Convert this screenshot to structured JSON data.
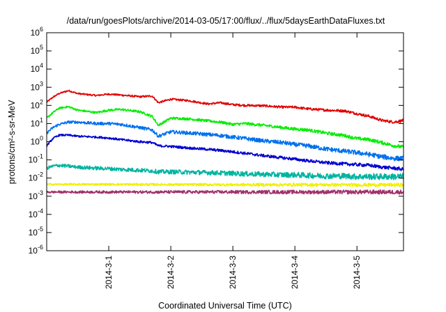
{
  "chart_data": {
    "type": "line",
    "title": "/data/run/goesPlots/archive/2014-03-05/17:00/flux/../flux/5daysEarthDataFluxes.txt",
    "xlabel": "Coordinated Universal Time (UTC)",
    "ylabel": "protons/cm²-s-sr-MeV",
    "yscale": "log",
    "ylim": [
      1e-06,
      1000000.0
    ],
    "y_tick_exponents": [
      -6,
      -5,
      -4,
      -3,
      -2,
      -1,
      0,
      1,
      2,
      3,
      4,
      5,
      6
    ],
    "x_range_days": [
      0,
      5.75
    ],
    "x_tick_labels": [
      "2014-3-1",
      "2014-3-2",
      "2014-3-3",
      "2014-3-4",
      "2014-3-5"
    ],
    "x_tick_days": [
      1,
      2,
      3,
      4,
      5
    ],
    "grid": false,
    "legend": "none",
    "series": [
      {
        "color": "#e00000",
        "noise": 0.04,
        "x": [
          0,
          0.1,
          0.2,
          0.35,
          0.5,
          0.8,
          1.0,
          1.2,
          1.5,
          1.7,
          1.8,
          2.0,
          2.3,
          2.6,
          2.8,
          3.0,
          3.2,
          3.5,
          3.8,
          4.0,
          4.2,
          4.5,
          4.8,
          5.0,
          5.2,
          5.4,
          5.6,
          5.75
        ],
        "y": [
          150,
          280,
          450,
          650,
          450,
          350,
          420,
          370,
          300,
          330,
          140,
          220,
          180,
          120,
          140,
          110,
          100,
          95,
          80,
          80,
          65,
          55,
          50,
          35,
          25,
          15,
          12,
          15
        ]
      },
      {
        "color": "#00ee00",
        "noise": 0.05,
        "x": [
          0,
          0.1,
          0.2,
          0.35,
          0.5,
          0.8,
          1.0,
          1.2,
          1.5,
          1.7,
          1.8,
          2.0,
          2.3,
          2.6,
          2.8,
          3.0,
          3.2,
          3.5,
          3.8,
          4.0,
          4.2,
          4.5,
          4.8,
          5.0,
          5.2,
          5.4,
          5.6,
          5.75
        ],
        "y": [
          20,
          40,
          70,
          85,
          55,
          40,
          55,
          60,
          45,
          25,
          8,
          20,
          18,
          14,
          12,
          9,
          10,
          8,
          6,
          5,
          4.5,
          3,
          2.2,
          1.5,
          1.3,
          0.9,
          0.6,
          0.5
        ]
      },
      {
        "color": "#0070ee",
        "noise": 0.07,
        "x": [
          0,
          0.1,
          0.2,
          0.35,
          0.5,
          0.8,
          1.0,
          1.2,
          1.5,
          1.7,
          1.8,
          2.0,
          2.3,
          2.6,
          2.8,
          3.0,
          3.2,
          3.5,
          3.8,
          4.0,
          4.2,
          4.5,
          4.8,
          5.0,
          5.2,
          5.4,
          5.6,
          5.75
        ],
        "y": [
          3,
          6,
          9,
          12,
          12,
          10,
          10,
          9,
          6,
          4.5,
          2,
          3.5,
          3,
          2.5,
          2.2,
          1.8,
          1.5,
          1.1,
          0.9,
          0.7,
          0.6,
          0.4,
          0.3,
          0.25,
          0.2,
          0.15,
          0.12,
          0.12
        ]
      },
      {
        "color": "#0000d0",
        "noise": 0.05,
        "x": [
          0,
          0.1,
          0.2,
          0.35,
          0.5,
          0.8,
          1.0,
          1.2,
          1.5,
          1.7,
          1.8,
          2.0,
          2.3,
          2.6,
          2.8,
          3.0,
          3.2,
          3.5,
          3.8,
          4.0,
          4.2,
          4.5,
          4.8,
          5.0,
          5.2,
          5.4,
          5.6,
          5.75
        ],
        "y": [
          0.6,
          1.5,
          2.3,
          2.3,
          2.0,
          1.8,
          1.6,
          1.3,
          1.0,
          0.9,
          0.6,
          0.55,
          0.45,
          0.38,
          0.33,
          0.28,
          0.23,
          0.17,
          0.13,
          0.11,
          0.09,
          0.07,
          0.06,
          0.055,
          0.05,
          0.04,
          0.035,
          0.03
        ]
      },
      {
        "color": "#00b4a0",
        "noise": 0.09,
        "x": [
          0,
          0.1,
          0.2,
          0.35,
          0.5,
          0.8,
          1.0,
          1.2,
          1.5,
          1.7,
          1.8,
          2.0,
          2.3,
          2.6,
          2.8,
          3.0,
          3.2,
          3.5,
          3.8,
          4.0,
          4.2,
          4.5,
          4.8,
          5.0,
          5.2,
          5.4,
          5.6,
          5.75
        ],
        "y": [
          0.035,
          0.045,
          0.05,
          0.045,
          0.04,
          0.035,
          0.033,
          0.03,
          0.027,
          0.025,
          0.022,
          0.022,
          0.021,
          0.02,
          0.019,
          0.018,
          0.017,
          0.016,
          0.015,
          0.015,
          0.014,
          0.013,
          0.013,
          0.012,
          0.012,
          0.012,
          0.012,
          0.012
        ]
      },
      {
        "color": "#f0f000",
        "noise": 0.05,
        "x": [
          0,
          1,
          2,
          3,
          4,
          5,
          5.75
        ],
        "y": [
          0.0045,
          0.0045,
          0.0044,
          0.0043,
          0.0043,
          0.0042,
          0.0042
        ]
      },
      {
        "color": "#a0306a",
        "noise": 0.06,
        "x": [
          0,
          1,
          2,
          3,
          4,
          5,
          5.75
        ],
        "y": [
          0.0017,
          0.0017,
          0.0017,
          0.0017,
          0.0017,
          0.0017,
          0.0017
        ]
      }
    ]
  }
}
